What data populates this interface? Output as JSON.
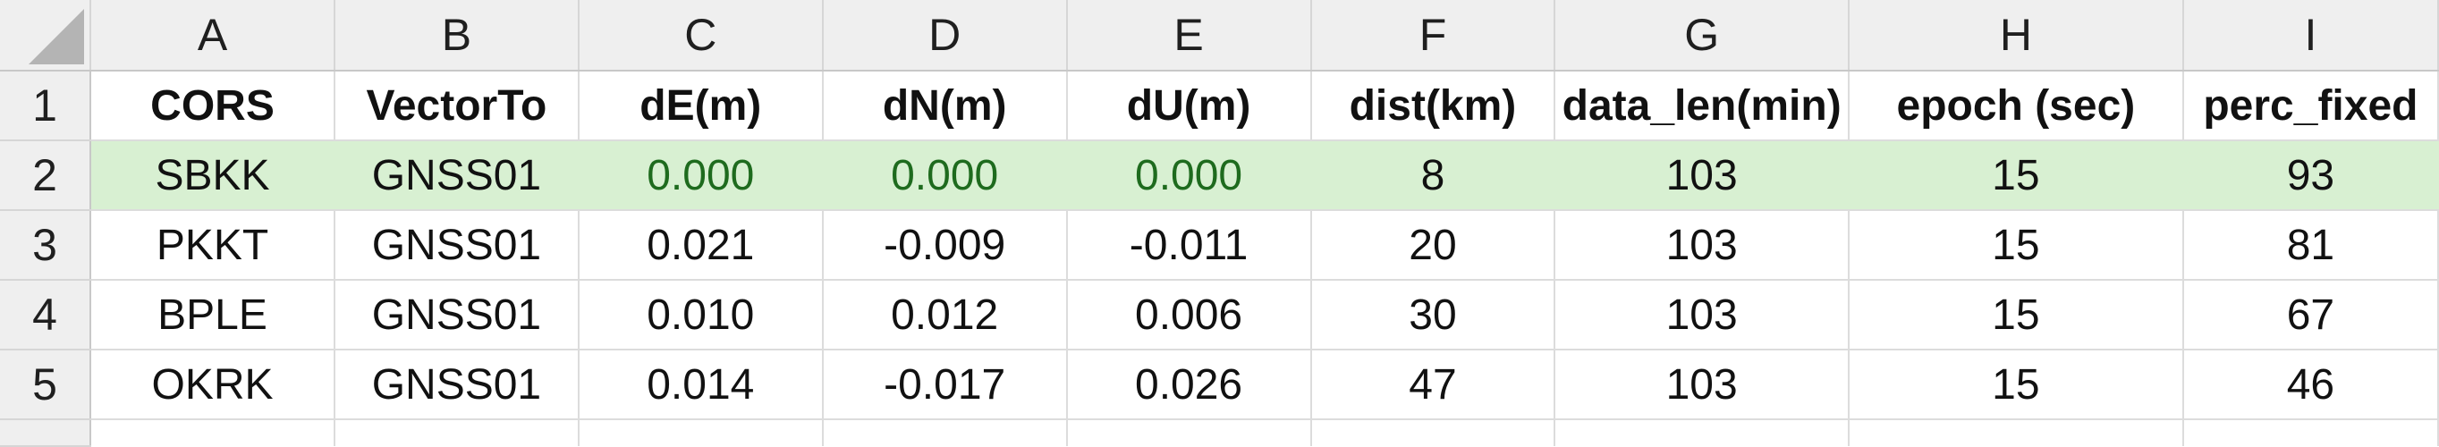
{
  "columns": [
    "A",
    "B",
    "C",
    "D",
    "E",
    "F",
    "G",
    "H",
    "I"
  ],
  "rows": [
    {
      "num": "1",
      "cells": [
        "CORS",
        "VectorTo",
        "dE(m)",
        "dN(m)",
        "dU(m)",
        "dist(km)",
        "data_len(min)",
        "epoch (sec)",
        "perc_fixed"
      ]
    },
    {
      "num": "2",
      "cells": [
        "SBKK",
        "GNSS01",
        "0.000",
        "0.000",
        "0.000",
        "8",
        "103",
        "15",
        "93"
      ]
    },
    {
      "num": "3",
      "cells": [
        "PKKT",
        "GNSS01",
        "0.021",
        "-0.009",
        "-0.011",
        "20",
        "103",
        "15",
        "81"
      ]
    },
    {
      "num": "4",
      "cells": [
        "BPLE",
        "GNSS01",
        "0.010",
        "0.012",
        "0.006",
        "30",
        "103",
        "15",
        "67"
      ]
    },
    {
      "num": "5",
      "cells": [
        "OKRK",
        "GNSS01",
        "0.014",
        "-0.017",
        "0.026",
        "47",
        "103",
        "15",
        "46"
      ]
    }
  ],
  "colors": {
    "highlight_fill": "#d8f0d2",
    "highlight_text": "#1e6b1e",
    "header_bg": "#efefef",
    "gridline": "#dcdcdc"
  }
}
